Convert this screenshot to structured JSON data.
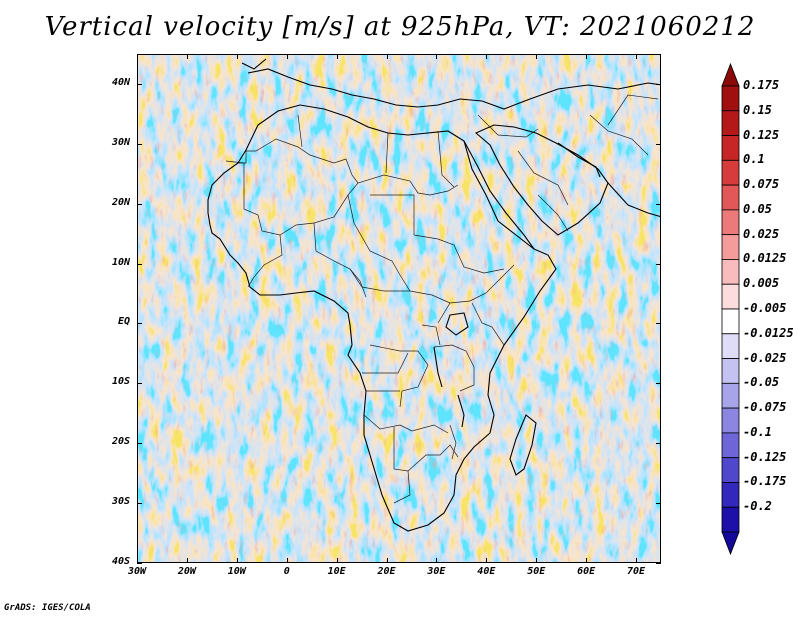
{
  "title": "Vertical velocity [m/s] at 925hPa, VT: 2021060212",
  "footer": "GrADS: IGES/COLA",
  "map": {
    "lon_range": [
      -30,
      75
    ],
    "lat_range": [
      -40,
      45
    ],
    "lat_ticks": [
      {
        "value": 40,
        "label": "40N"
      },
      {
        "value": 30,
        "label": "30N"
      },
      {
        "value": 20,
        "label": "20N"
      },
      {
        "value": 10,
        "label": "10N"
      },
      {
        "value": 0,
        "label": "EQ"
      },
      {
        "value": -10,
        "label": "10S"
      },
      {
        "value": -20,
        "label": "20S"
      },
      {
        "value": -30,
        "label": "30S"
      },
      {
        "value": -40,
        "label": "40S"
      }
    ],
    "lon_ticks": [
      {
        "value": -30,
        "label": "30W"
      },
      {
        "value": -20,
        "label": "20W"
      },
      {
        "value": -10,
        "label": "10W"
      },
      {
        "value": 0,
        "label": "0"
      },
      {
        "value": 10,
        "label": "10E"
      },
      {
        "value": 20,
        "label": "20E"
      },
      {
        "value": 30,
        "label": "30E"
      },
      {
        "value": 40,
        "label": "40E"
      },
      {
        "value": 50,
        "label": "50E"
      },
      {
        "value": 60,
        "label": "60E"
      },
      {
        "value": 70,
        "label": "70E"
      }
    ]
  },
  "colorbar": {
    "levels": [
      {
        "label": "0.175",
        "color": "#a01010"
      },
      {
        "label": "0.15",
        "color": "#b41818"
      },
      {
        "label": "0.125",
        "color": "#c62626"
      },
      {
        "label": "0.1",
        "color": "#d63c3c"
      },
      {
        "label": "0.075",
        "color": "#e25858"
      },
      {
        "label": "0.05",
        "color": "#ec7a7a"
      },
      {
        "label": "0.025",
        "color": "#f49c9c"
      },
      {
        "label": "0.0125",
        "color": "#f8bcbc"
      },
      {
        "label": "0.005",
        "color": "#fcdcdc"
      },
      {
        "label": "-0.005",
        "color": "#ffffff"
      },
      {
        "label": "-0.0125",
        "color": "#dedcf6"
      },
      {
        "label": "-0.025",
        "color": "#c4c2f0"
      },
      {
        "label": "-0.05",
        "color": "#a8a4ea"
      },
      {
        "label": "-0.075",
        "color": "#8c86e2"
      },
      {
        "label": "-0.1",
        "color": "#6e66d8"
      },
      {
        "label": "-0.125",
        "color": "#5048cc"
      },
      {
        "label": "-0.175",
        "color": "#3228bc"
      },
      {
        "label": "-0.2",
        "color": "#1c10a8"
      }
    ],
    "top_color": "#8a0a0a",
    "bottom_color": "#14089a"
  }
}
